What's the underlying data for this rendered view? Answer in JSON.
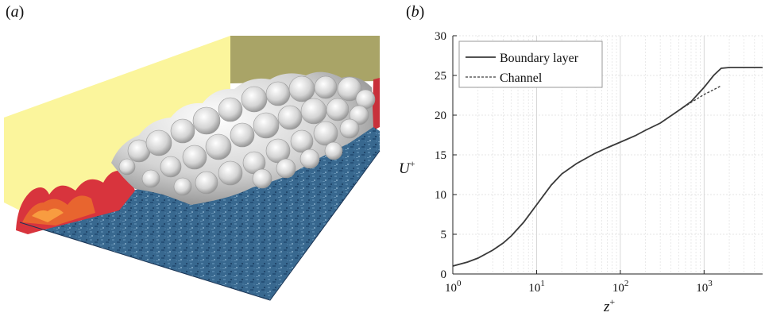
{
  "panels": {
    "a": {
      "label_open": "(",
      "label_letter": "a",
      "label_close": ")"
    },
    "b": {
      "label_open": "(",
      "label_letter": "b",
      "label_close": ")"
    }
  },
  "colors": {
    "side_wall": "#fbf59c",
    "back_wall": "#a9a467",
    "floor": "#3c6c93",
    "red_structure": "#d8343d",
    "iso_surface": "#dcdcdc",
    "boundary_layer": "#3a3a3a",
    "channel": "#3a3a3a"
  },
  "chart_data": {
    "type": "line",
    "xscale": "log",
    "xlim": [
      1,
      5000
    ],
    "ylim": [
      0,
      30
    ],
    "xlabel_main": "z",
    "xlabel_sup": "+",
    "ylabel_main": "U",
    "ylabel_sup": "+",
    "xticks": [
      {
        "value": 1,
        "base": "10",
        "exp": "0"
      },
      {
        "value": 10,
        "base": "10",
        "exp": "1"
      },
      {
        "value": 100,
        "base": "10",
        "exp": "2"
      },
      {
        "value": 1000,
        "base": "10",
        "exp": "3"
      }
    ],
    "yticks": [
      0,
      5,
      10,
      15,
      20,
      25,
      30
    ],
    "grid": true,
    "legend_position": "top-left",
    "series": [
      {
        "name": "Boundary layer",
        "style": "solid",
        "x": [
          1,
          1.5,
          2,
          3,
          4,
          5,
          7,
          10,
          15,
          20,
          30,
          50,
          70,
          100,
          150,
          200,
          300,
          500,
          700,
          1000,
          1300,
          1600,
          2000,
          3000,
          5000
        ],
        "y": [
          1.0,
          1.5,
          2.0,
          3.0,
          3.9,
          4.8,
          6.5,
          8.7,
          11.2,
          12.6,
          13.9,
          15.2,
          15.9,
          16.6,
          17.4,
          18.1,
          19.0,
          20.6,
          21.7,
          23.5,
          25.0,
          25.9,
          26.0,
          26.0,
          26.0
        ]
      },
      {
        "name": "Channel",
        "style": "dashed",
        "x": [
          1,
          1.5,
          2,
          3,
          4,
          5,
          7,
          10,
          15,
          20,
          30,
          50,
          70,
          100,
          150,
          200,
          300,
          500,
          700,
          1000,
          1300,
          1600
        ],
        "y": [
          1.0,
          1.5,
          2.0,
          3.0,
          3.9,
          4.8,
          6.5,
          8.7,
          11.2,
          12.6,
          13.9,
          15.2,
          15.9,
          16.6,
          17.4,
          18.1,
          19.0,
          20.6,
          21.6,
          22.6,
          23.2,
          23.7
        ]
      }
    ]
  }
}
